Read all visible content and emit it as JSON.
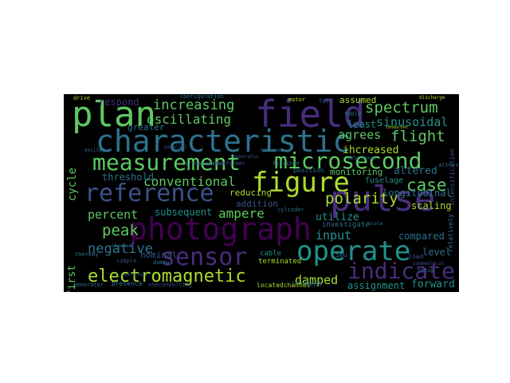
{
  "palette": {
    "background": "#000000",
    "page": "#ffffff",
    "green": "#5ec962",
    "teal": "#21918c",
    "blue": "#3b528b",
    "purple": "#440154",
    "violet": "#472d7b",
    "aqua": "#2c728e",
    "lime": "#addc30",
    "yellow": "#d8e219"
  },
  "words": {
    "characteristic": "characteristic",
    "plan": "plan",
    "field": "field",
    "measurement": "measurement",
    "microsecond": "microsecond",
    "reference": "reference",
    "figure": "figure",
    "pulse": "pulse",
    "photograph": "photograph",
    "sensor": "sensor",
    "operate": "operate",
    "electromagnetic": "electromagnetic",
    "indicate": "indicate",
    "increasing": "increasing",
    "oscillating": "oscillating",
    "spectrum": "spectrum",
    "sinusoidal": "sinusoidal",
    "flight": "flight",
    "agrees": "agrees",
    "increased": "ihcreased",
    "conventional": "conventional",
    "case": "case",
    "polarity": "polarity",
    "ampere": "ampere",
    "percent": "percent",
    "peak": "peak",
    "negative": "negative",
    "damped": "damped",
    "input": "input",
    "compared": "compared",
    "forward": "forward",
    "assignment": "assignment",
    "level": "level",
    "threshold": "threshold",
    "cycle": "cycle",
    "first": "first",
    "scaling": "scaling",
    "utilize": "utilize",
    "longitudinal": "longitudinal",
    "altered": "altered",
    "monitoring": "monitoring",
    "fuselage": "fuselage",
    "subsequent": "subsequent",
    "reducing": "reducing",
    "addition": "addition",
    "greater": "greater",
    "respond": "respond",
    "assumed": "assumed",
    "least": "least",
    "nominal": "nominal",
    "cable": "cable",
    "terminated": "terminated",
    "presence": "presence",
    "generator": "generator",
    "nonconducting": "nonconducting",
    "locatedchannel": "locatedchannel",
    "lieu": "lieu",
    "load": "load",
    "investigate": "investigate",
    "position": "position",
    "motor": "motor",
    "full": "full",
    "drive": "drive",
    "configuration": "configuration",
    "transmission": "transmission",
    "transformer": "transformer",
    "thereby": "thereby",
    "simple": "simple",
    "dummy": "dummy",
    "checked": "checked",
    "cylinder": "cylinder",
    "meter": "meter",
    "relatively": "relatively",
    "intensification": "intensification",
    "alters": "alters",
    "setup": "setup",
    "symmetrical": "symmetrical",
    "calculated": "calculated",
    "returned": "returned",
    "flexible": "flexible",
    "table": "table",
    "discharge": "discharge",
    "excited": "excited",
    "external": "external",
    "determined": "determined",
    "scale": "scale",
    "apparatus": "apparatus",
    "conducted": "conducted",
    "parallel": "parallel"
  }
}
